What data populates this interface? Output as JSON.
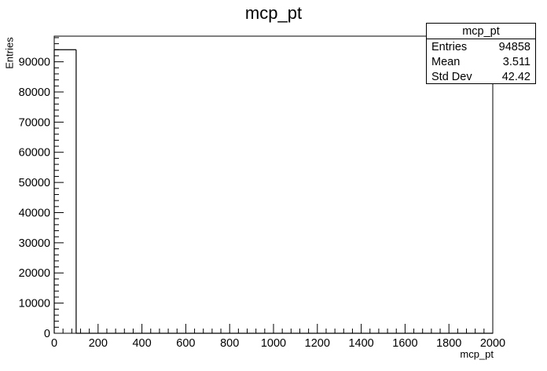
{
  "chart_data": {
    "type": "histogram",
    "title": "mcp_pt",
    "xlabel": "mcp_pt",
    "ylabel": "Entries",
    "xlim": [
      0,
      2000
    ],
    "ylim": [
      0,
      98500
    ],
    "grid": false,
    "x_ticks": [
      "0",
      "200",
      "400",
      "600",
      "800",
      "1000",
      "1200",
      "1400",
      "1600",
      "1800",
      "2000"
    ],
    "y_ticks": [
      "0",
      "10000",
      "20000",
      "30000",
      "40000",
      "50000",
      "60000",
      "70000",
      "80000",
      "90000"
    ],
    "bins": {
      "edges": [
        0,
        100,
        2000
      ],
      "values": [
        94000,
        0
      ]
    }
  },
  "stats_box": {
    "title": "mcp_pt",
    "rows": [
      {
        "label": "Entries",
        "value": "94858"
      },
      {
        "label": "Mean",
        "value": "3.511"
      },
      {
        "label": "Std Dev",
        "value": "42.42"
      }
    ]
  }
}
